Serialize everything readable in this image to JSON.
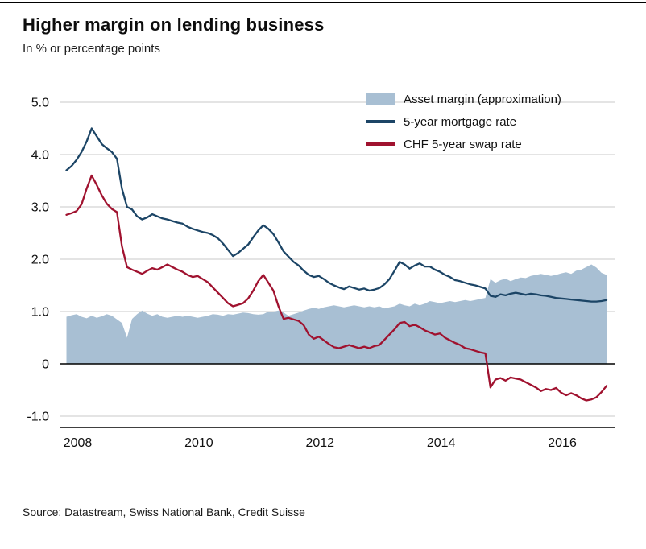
{
  "chart_data": {
    "type": "area",
    "title": "Higher margin on lending business",
    "subtitle": "In % or percentage points",
    "xlabel": "",
    "ylabel": "",
    "x_unit": "decimal_year",
    "x_start": 2008,
    "x_interval_months": 1,
    "xlim": [
      2008,
      2017
    ],
    "ylim": [
      -1.0,
      5.0
    ],
    "grid": true,
    "legend_position": "top-right",
    "y_ticks": [
      {
        "v": 5.0,
        "label": "5.0"
      },
      {
        "v": 4.0,
        "label": "4.0"
      },
      {
        "v": 3.0,
        "label": "3.0"
      },
      {
        "v": 2.0,
        "label": "2.0"
      },
      {
        "v": 1.0,
        "label": "1.0"
      },
      {
        "v": 0.0,
        "label": "0"
      },
      {
        "v": -1.0,
        "label": "-1.0"
      }
    ],
    "x_ticks": [
      {
        "v": 2008,
        "label": "2008"
      },
      {
        "v": 2010,
        "label": "2010"
      },
      {
        "v": 2012,
        "label": "2012"
      },
      {
        "v": 2014,
        "label": "2014"
      },
      {
        "v": 2016,
        "label": "2016"
      }
    ],
    "series": [
      {
        "name": "Asset margin (approximation)",
        "type": "area",
        "color": "#a8bfd3",
        "values": [
          0.9,
          0.93,
          0.95,
          0.9,
          0.87,
          0.92,
          0.88,
          0.91,
          0.95,
          0.92,
          0.85,
          0.78,
          0.5,
          0.86,
          0.95,
          1.02,
          0.96,
          0.92,
          0.95,
          0.9,
          0.88,
          0.9,
          0.92,
          0.9,
          0.92,
          0.9,
          0.88,
          0.9,
          0.92,
          0.95,
          0.94,
          0.92,
          0.95,
          0.94,
          0.96,
          0.98,
          0.97,
          0.95,
          0.94,
          0.95,
          1.0,
          1.0,
          1.02,
          0.98,
          0.92,
          0.95,
          0.98,
          1.02,
          1.05,
          1.07,
          1.05,
          1.08,
          1.1,
          1.12,
          1.1,
          1.08,
          1.1,
          1.12,
          1.1,
          1.08,
          1.1,
          1.08,
          1.1,
          1.06,
          1.08,
          1.1,
          1.15,
          1.12,
          1.1,
          1.15,
          1.12,
          1.15,
          1.2,
          1.18,
          1.16,
          1.18,
          1.2,
          1.18,
          1.2,
          1.22,
          1.2,
          1.22,
          1.24,
          1.26,
          1.62,
          1.55,
          1.6,
          1.63,
          1.58,
          1.62,
          1.65,
          1.64,
          1.68,
          1.7,
          1.72,
          1.7,
          1.68,
          1.7,
          1.73,
          1.75,
          1.72,
          1.78,
          1.8,
          1.85,
          1.9,
          1.84,
          1.74,
          1.7
        ]
      },
      {
        "name": "5-year mortgage rate",
        "type": "line",
        "color": "#1c4566",
        "values": [
          3.7,
          3.78,
          3.9,
          4.05,
          4.25,
          4.5,
          4.35,
          4.2,
          4.12,
          4.05,
          3.92,
          3.35,
          3.0,
          2.95,
          2.82,
          2.76,
          2.8,
          2.86,
          2.82,
          2.78,
          2.76,
          2.73,
          2.7,
          2.68,
          2.62,
          2.58,
          2.55,
          2.52,
          2.5,
          2.46,
          2.4,
          2.3,
          2.18,
          2.06,
          2.12,
          2.2,
          2.28,
          2.42,
          2.55,
          2.65,
          2.58,
          2.48,
          2.32,
          2.15,
          2.05,
          1.95,
          1.88,
          1.78,
          1.7,
          1.66,
          1.68,
          1.62,
          1.55,
          1.5,
          1.46,
          1.43,
          1.48,
          1.45,
          1.42,
          1.44,
          1.4,
          1.42,
          1.45,
          1.52,
          1.62,
          1.78,
          1.95,
          1.9,
          1.82,
          1.88,
          1.92,
          1.86,
          1.86,
          1.8,
          1.76,
          1.7,
          1.66,
          1.6,
          1.58,
          1.55,
          1.52,
          1.5,
          1.47,
          1.44,
          1.3,
          1.28,
          1.33,
          1.31,
          1.34,
          1.36,
          1.34,
          1.32,
          1.34,
          1.33,
          1.31,
          1.3,
          1.28,
          1.26,
          1.25,
          1.24,
          1.23,
          1.22,
          1.21,
          1.2,
          1.19,
          1.19,
          1.2,
          1.22
        ]
      },
      {
        "name": "CHF 5-year swap rate",
        "type": "line",
        "color": "#a0122f",
        "values": [
          2.85,
          2.88,
          2.92,
          3.05,
          3.35,
          3.6,
          3.42,
          3.22,
          3.06,
          2.96,
          2.9,
          2.25,
          1.85,
          1.8,
          1.76,
          1.72,
          1.78,
          1.83,
          1.8,
          1.85,
          1.9,
          1.85,
          1.8,
          1.76,
          1.7,
          1.66,
          1.68,
          1.62,
          1.56,
          1.46,
          1.36,
          1.26,
          1.16,
          1.1,
          1.13,
          1.16,
          1.25,
          1.4,
          1.58,
          1.7,
          1.55,
          1.4,
          1.1,
          0.86,
          0.88,
          0.85,
          0.82,
          0.74,
          0.56,
          0.48,
          0.52,
          0.45,
          0.38,
          0.32,
          0.3,
          0.33,
          0.36,
          0.33,
          0.3,
          0.33,
          0.3,
          0.34,
          0.36,
          0.46,
          0.56,
          0.66,
          0.78,
          0.8,
          0.72,
          0.75,
          0.7,
          0.64,
          0.6,
          0.56,
          0.58,
          0.5,
          0.45,
          0.4,
          0.36,
          0.3,
          0.28,
          0.25,
          0.22,
          0.2,
          -0.45,
          -0.3,
          -0.27,
          -0.32,
          -0.26,
          -0.28,
          -0.3,
          -0.35,
          -0.4,
          -0.45,
          -0.52,
          -0.48,
          -0.5,
          -0.46,
          -0.55,
          -0.6,
          -0.56,
          -0.6,
          -0.66,
          -0.7,
          -0.68,
          -0.64,
          -0.54,
          -0.42
        ]
      }
    ],
    "colors": {
      "grid": "#c9c9c9",
      "zero_line": "#000000",
      "axis": "#000000",
      "top_rule": "#000000"
    }
  },
  "footer": {
    "source": "Source: Datastream, Swiss National Bank, Credit Suisse"
  }
}
